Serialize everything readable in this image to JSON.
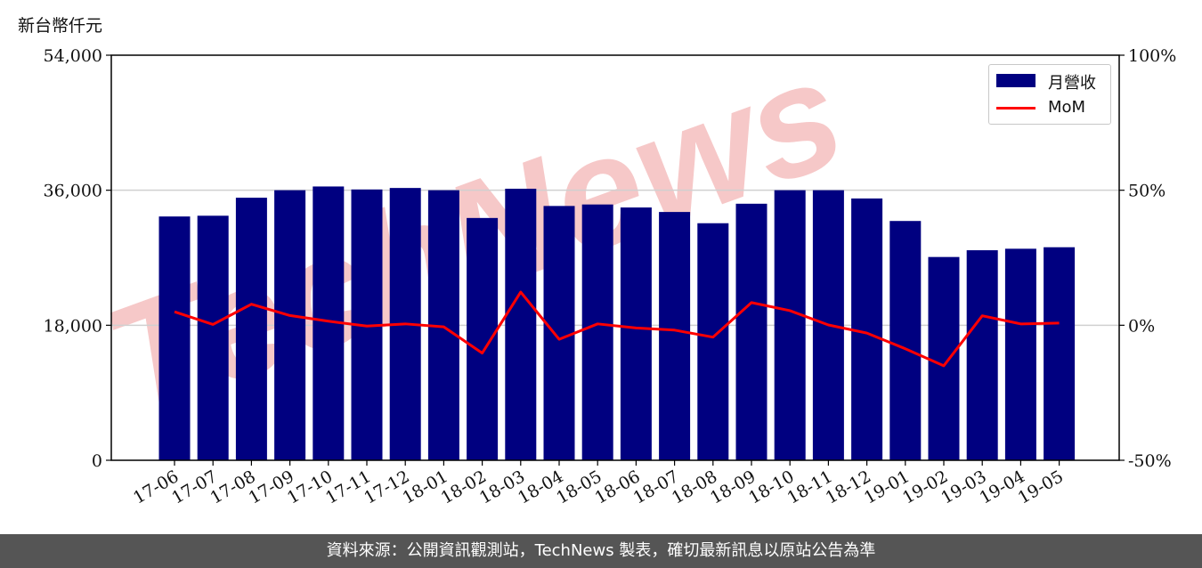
{
  "unit_label": "新台幣仟元",
  "footer_text": "資料來源：公開資訊觀測站，TechNews 製表，確切最新訊息以原站公告為準",
  "watermark_text": "TechNews",
  "legend": {
    "bar_label": "月營收",
    "line_label": "MoM"
  },
  "colors": {
    "bar": "#000080",
    "line": "#ff0000",
    "grid": "#d0d0d0",
    "footer_bg": "#555555",
    "watermark": "#f6c8c8"
  },
  "chart_data": {
    "type": "bar",
    "categories": [
      "17-06",
      "17-07",
      "17-08",
      "17-09",
      "17-10",
      "17-11",
      "17-12",
      "18-01",
      "18-02",
      "18-03",
      "18-04",
      "18-05",
      "18-06",
      "18-07",
      "18-08",
      "18-09",
      "18-10",
      "18-11",
      "18-12",
      "19-01",
      "19-02",
      "19-03",
      "19-04",
      "19-05"
    ],
    "series": [
      {
        "name": "月營收",
        "type": "bar",
        "axis": "left",
        "values": [
          32500,
          32600,
          35000,
          36000,
          36500,
          36100,
          36300,
          36000,
          32300,
          36200,
          33900,
          34100,
          33700,
          33100,
          31600,
          34200,
          36000,
          36000,
          34900,
          31900,
          27100,
          28000,
          28200,
          28400
        ]
      },
      {
        "name": "MoM",
        "type": "line",
        "axis": "right",
        "values": [
          5.0,
          0.3,
          7.8,
          3.6,
          1.5,
          -0.3,
          0.5,
          -0.6,
          -10.3,
          12.3,
          -5.2,
          0.5,
          -1.0,
          -1.8,
          -4.4,
          8.4,
          5.4,
          0.1,
          -2.9,
          -8.7,
          -15.0,
          3.5,
          0.5,
          0.8
        ]
      }
    ],
    "y_left": {
      "ylim": [
        0,
        54000
      ],
      "ticks": [
        0,
        18000,
        36000,
        54000
      ],
      "tick_labels": [
        "0",
        "18,000",
        "36,000",
        "54,000"
      ]
    },
    "y_right": {
      "ylim": [
        -50,
        100
      ],
      "ticks": [
        -50,
        0,
        50,
        100
      ],
      "tick_labels": [
        "-50%",
        "0%",
        "50%",
        "100%"
      ]
    },
    "grid": "horizontal",
    "legend_position": "top-right"
  }
}
